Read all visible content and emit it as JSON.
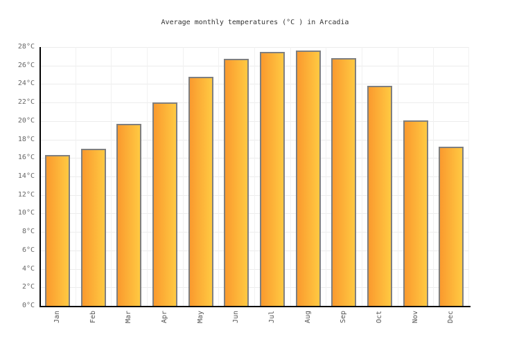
{
  "title": "Average monthly temperatures (°C ) in Arcadia",
  "chart_data": {
    "type": "bar",
    "title": "Average monthly temperatures (°C ) in Arcadia",
    "categories": [
      "Jan",
      "Feb",
      "Mar",
      "Apr",
      "May",
      "Jun",
      "Jul",
      "Aug",
      "Sep",
      "Oct",
      "Nov",
      "Dec"
    ],
    "values": [
      16.3,
      17.0,
      19.7,
      22.0,
      24.8,
      26.7,
      27.5,
      27.6,
      26.8,
      23.8,
      20.1,
      17.2
    ],
    "xlabel": "",
    "ylabel": "",
    "ylim": [
      0,
      28
    ],
    "ytick_step": 2,
    "ytick_values": [
      0,
      2,
      4,
      6,
      8,
      10,
      12,
      14,
      16,
      18,
      20,
      22,
      24,
      26,
      28
    ],
    "ytick_labels": [
      "0°C",
      "2°C",
      "4°C",
      "6°C",
      "8°C",
      "10°C",
      "12°C",
      "14°C",
      "16°C",
      "18°C",
      "20°C",
      "22°C",
      "24°C",
      "26°C",
      "28°C"
    ],
    "grid": true,
    "legend": "none",
    "colors": {
      "bar_gradient_left": "#fa9a2e",
      "bar_gradient_right": "#ffc942",
      "bar_border": "#7f7f7f",
      "axis_line": "#000000",
      "h_gridline": "#ececec",
      "v_gridline": "#f1f1f1",
      "y_tick_text": "#666666",
      "x_tick_text": "#555555",
      "title_text": "#333333",
      "background": "#ffffff"
    }
  }
}
